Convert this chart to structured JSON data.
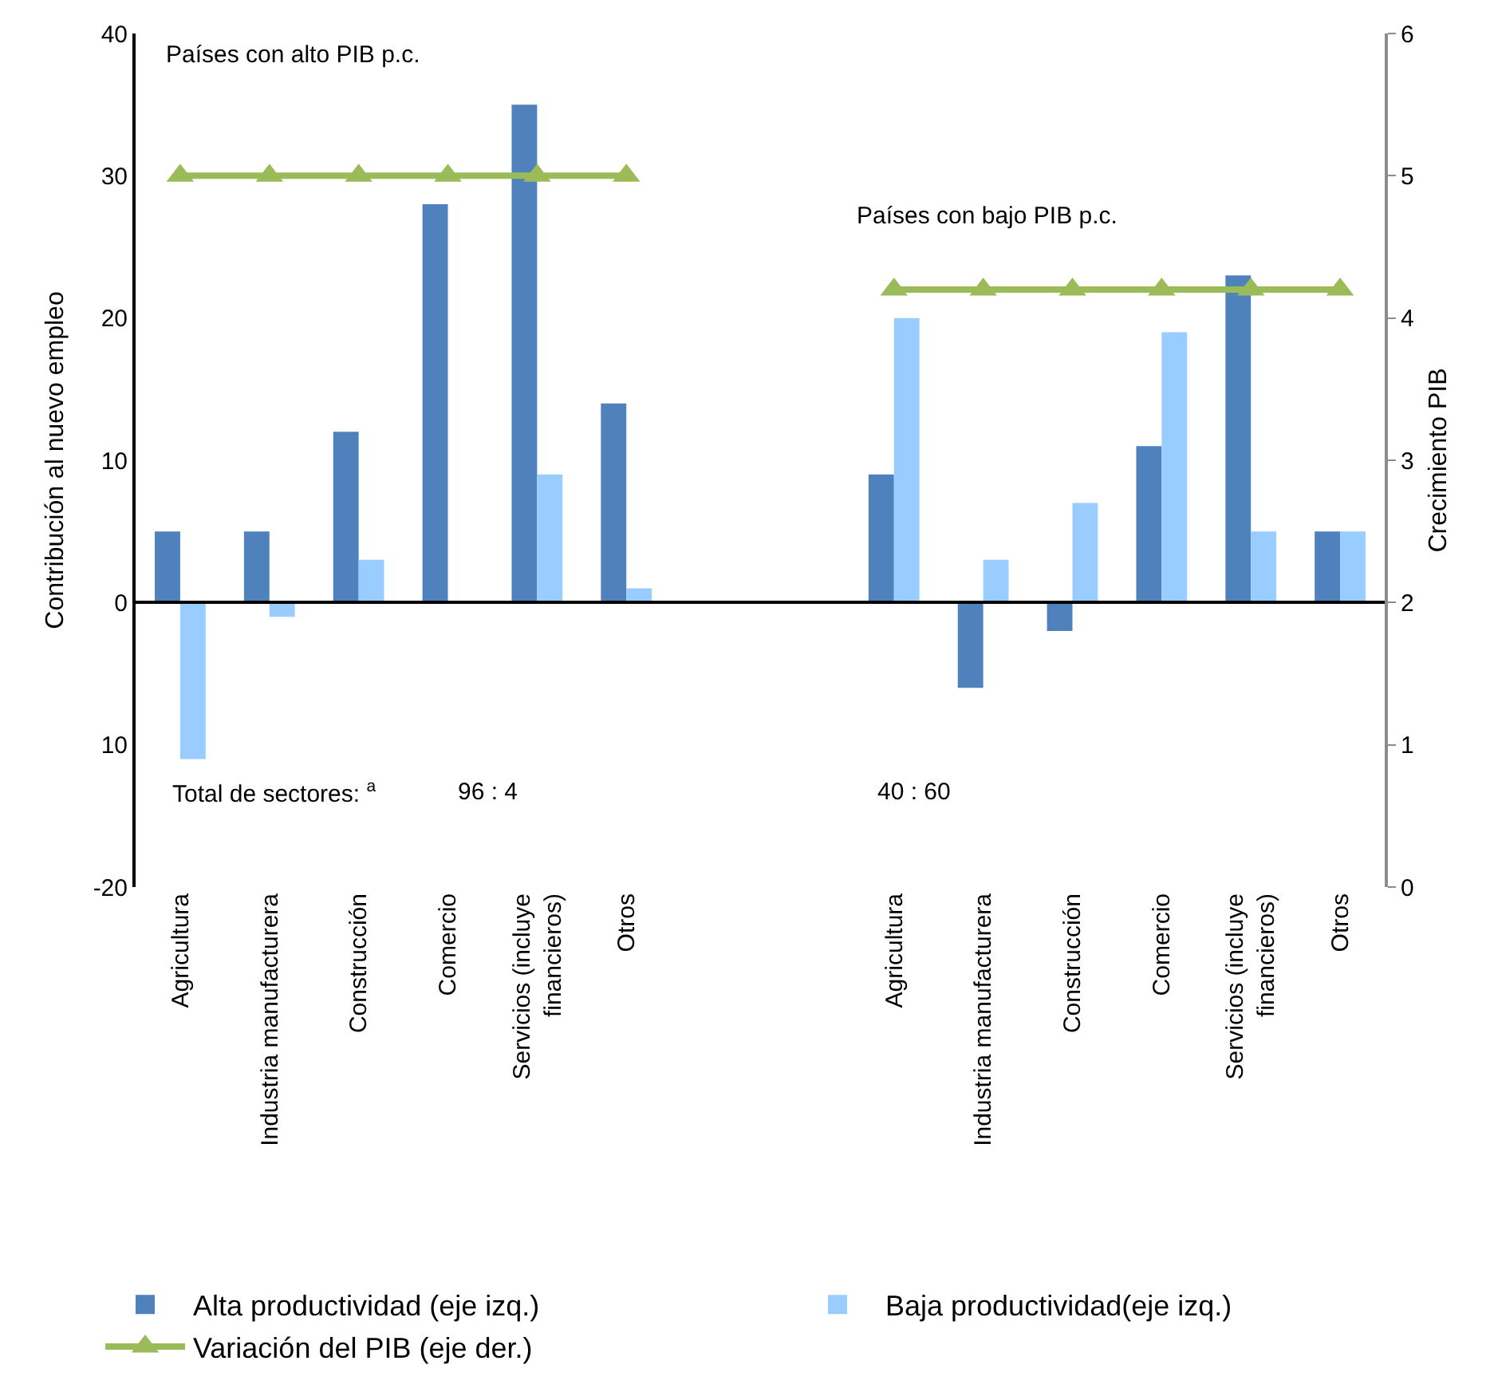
{
  "chart_data": {
    "type": "bar",
    "ylabel": "Contribución al nuevo empleo",
    "y2label": "Crecimiento PIB",
    "categories": [
      "Agricultura",
      "Industria manufacturera",
      "Construcción",
      "Comercio",
      "Servicios (incluye financieros)",
      "Otros",
      null,
      null,
      "Agricultura",
      "Industria manufacturera",
      "Construcción",
      "Comercio",
      "Servicios (incluye financieros)",
      "Otros"
    ],
    "series": [
      {
        "name": "Alta productividad (eje izq.)",
        "color": "#4f81bd",
        "values": [
          5,
          5,
          12,
          28,
          35,
          14,
          null,
          null,
          9,
          -6,
          -2,
          11,
          23,
          5
        ]
      },
      {
        "name": "Baja productividad(eje izq.)",
        "color": "#99ccff",
        "values": [
          -11,
          -1,
          3,
          0,
          9,
          1,
          null,
          null,
          20,
          3,
          7,
          19,
          5,
          5
        ]
      },
      {
        "name": "Variación del PIB (eje der.)",
        "type": "line",
        "axis": "y2",
        "marker": "triangle",
        "color": "#9bbb59",
        "values": [
          5,
          5,
          5,
          5,
          5,
          5,
          null,
          null,
          4.2,
          4.2,
          4.2,
          4.2,
          4.2,
          4.2
        ]
      }
    ],
    "ylim": [
      -20,
      40
    ],
    "yticks": [
      -20,
      {
        "value": -10,
        "label": "10"
      },
      0,
      10,
      20,
      30,
      40
    ],
    "y2lim": [
      0,
      6
    ],
    "y2ticks": [
      0,
      1,
      2,
      3,
      4,
      5,
      6
    ],
    "annotations": [
      "Países con alto PIB p.c.",
      "Países con bajo PIB p.c.",
      "Total de sectores: $^{a}$",
      "96 : 4",
      "40 : 60"
    ],
    "legend": "bottom"
  }
}
